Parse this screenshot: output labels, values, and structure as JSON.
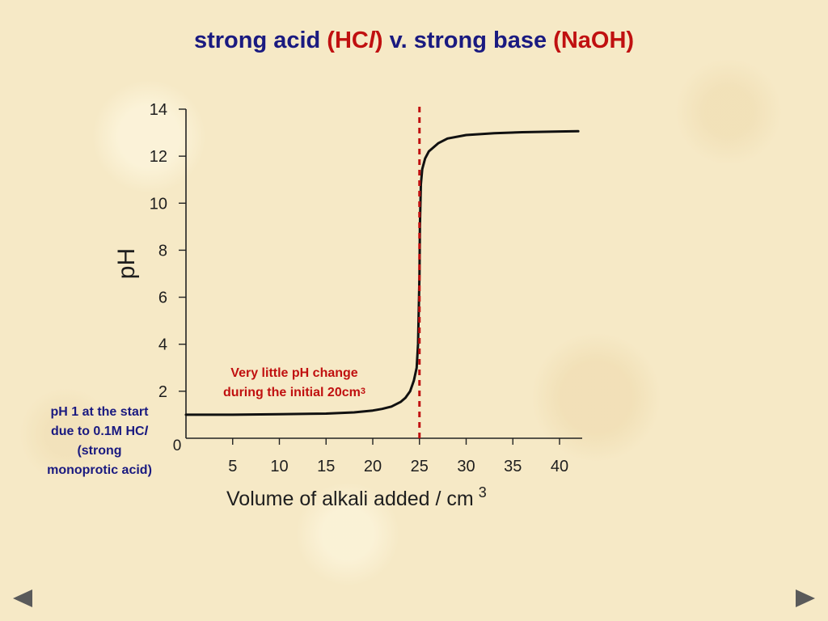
{
  "title": {
    "part1": "strong acid ",
    "part2_open": "(HC",
    "part2_italic": "l",
    "part2_close": ")",
    "part3": " v. strong base ",
    "part4": "(NaOH)"
  },
  "annotations": {
    "middle_line1": "Very little pH change",
    "middle_line2_text": "during the initial 20cm",
    "middle_line2_sup": "3",
    "left_line1": "pH 1 at the start",
    "left_line2_text": "due to 0.1M HC",
    "left_line2_italic": "l",
    "left_line3": "(strong",
    "left_line4": "monoprotic acid)"
  },
  "navigation": {
    "prev_icon": "triangle-left-icon",
    "next_icon": "triangle-right-icon"
  },
  "colors": {
    "title": "#1a1a80",
    "accent": "#c01010",
    "curve": "#111111",
    "equivalence_line": "#c01010",
    "nav": "#5a5a5a"
  },
  "chart_data": {
    "type": "line",
    "xlabel": "Volume of alkali added / cm",
    "xlabel_sup": "3",
    "ylabel": "pH",
    "xlim": [
      0,
      42
    ],
    "ylim": [
      0,
      14
    ],
    "x_tick_labels": [
      "5",
      "10",
      "15",
      "20",
      "25",
      "30",
      "35",
      "40"
    ],
    "x_ticks": [
      5,
      10,
      15,
      20,
      25,
      30,
      35,
      40
    ],
    "y_tick_labels": [
      "2",
      "4",
      "6",
      "8",
      "10",
      "12",
      "14"
    ],
    "y_ticks": [
      2,
      4,
      6,
      8,
      10,
      12,
      14
    ],
    "origin_label": "0",
    "grid": false,
    "equivalence_volume": 25,
    "series": [
      {
        "x": [
          0,
          5,
          10,
          15,
          18,
          20,
          21,
          22,
          23,
          23.5,
          24,
          24.4,
          24.7,
          24.85,
          24.95,
          25,
          25.05,
          25.15,
          25.3,
          25.6,
          26,
          27,
          28,
          30,
          33,
          36,
          40,
          42
        ],
        "y": [
          1.0,
          1.0,
          1.02,
          1.05,
          1.1,
          1.18,
          1.25,
          1.35,
          1.55,
          1.72,
          2.0,
          2.45,
          3.0,
          4.0,
          6.0,
          7.0,
          9.0,
          10.8,
          11.45,
          11.9,
          12.2,
          12.55,
          12.75,
          12.9,
          12.98,
          13.02,
          13.05,
          13.06
        ]
      }
    ]
  }
}
